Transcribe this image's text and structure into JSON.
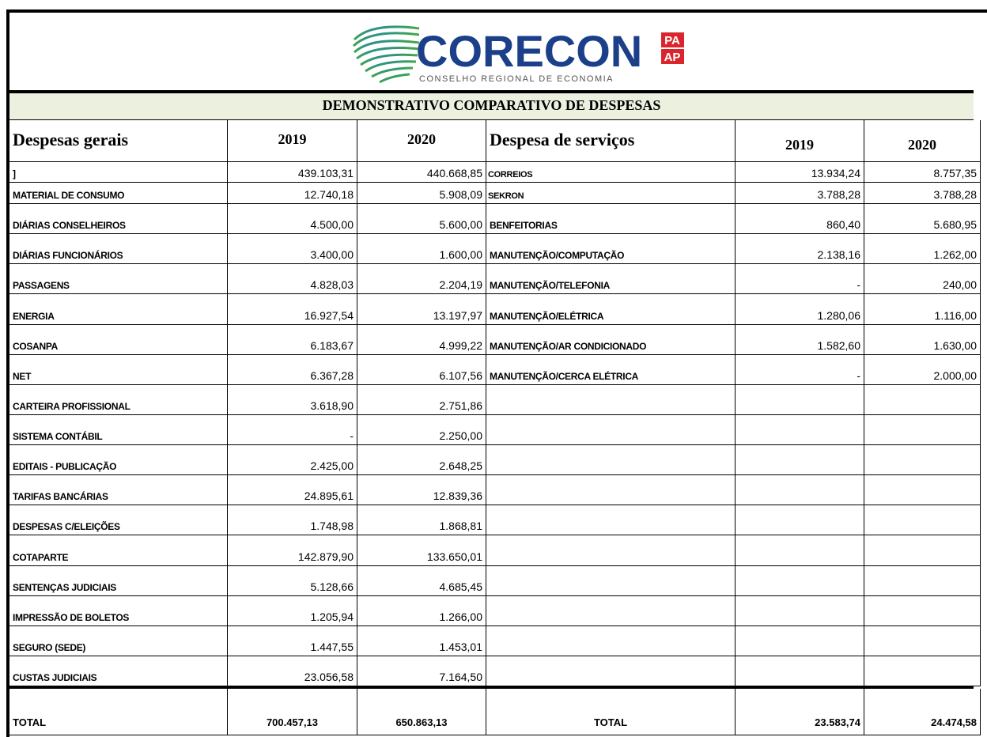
{
  "header": {
    "logo_text": "CORECON",
    "logo_badge_top": "PA",
    "logo_badge_bottom": "AP",
    "logo_subtitle": "CONSELHO REGIONAL DE ECONOMIA"
  },
  "table": {
    "title": "DEMONSTRATIVO COMPARATIVO DE DESPESAS",
    "left_headers": [
      "Despesas gerais",
      "2019",
      "2020"
    ],
    "right_headers": [
      "Despesa de serviços",
      "2019",
      "2020"
    ],
    "left_rows": [
      [
        "]",
        "439.103,31",
        "440.668,85"
      ],
      [
        "MATERIAL DE CONSUMO",
        "12.740,18",
        "5.908,09"
      ],
      [
        "DIÁRIAS CONSELHEIROS",
        "4.500,00",
        "5.600,00"
      ],
      [
        "DIÁRIAS FUNCIONÁRIOS",
        "3.400,00",
        "1.600,00"
      ],
      [
        "PASSAGENS",
        "4.828,03",
        "2.204,19"
      ],
      [
        "ENERGIA",
        "16.927,54",
        "13.197,97"
      ],
      [
        "COSANPA",
        "6.183,67",
        "4.999,22"
      ],
      [
        "NET",
        "6.367,28",
        "6.107,56"
      ],
      [
        "CARTEIRA PROFISSIONAL",
        "3.618,90",
        "2.751,86"
      ],
      [
        "SISTEMA CONTÁBIL",
        "-",
        "2.250,00"
      ],
      [
        "EDITAIS - PUBLICAÇÃO",
        "2.425,00",
        "2.648,25"
      ],
      [
        "TARIFAS BANCÁRIAS",
        "24.895,61",
        "12.839,36"
      ],
      [
        "DESPESAS C/ELEIÇÕES",
        "1.748,98",
        "1.868,81"
      ],
      [
        "COTAPARTE",
        "142.879,90",
        "133.650,01"
      ],
      [
        "SENTENÇAS JUDICIAIS",
        "5.128,66",
        "4.685,45"
      ],
      [
        "IMPRESSÃO DE BOLETOS",
        "1.205,94",
        "1.266,00"
      ],
      [
        "SEGURO (SEDE)",
        "1.447,55",
        "1.453,01"
      ],
      [
        "CUSTAS JUDICIAIS",
        "23.056,58",
        "7.164,50"
      ]
    ],
    "right_rows": [
      [
        "CORREIOS",
        "13.934,24",
        "8.757,35"
      ],
      [
        "SEKRON",
        "3.788,28",
        "3.788,28"
      ],
      [
        "BENFEITORIAS",
        "860,40",
        "5.680,95"
      ],
      [
        "MANUTENÇÃO/COMPUTAÇÃO",
        "2.138,16",
        "1.262,00"
      ],
      [
        "MANUTENÇÃO/TELEFONIA",
        "-",
        "240,00"
      ],
      [
        "MANUTENÇÃO/ELÉTRICA",
        "1.280,06",
        "1.116,00"
      ],
      [
        "MANUTENÇÃO/AR CONDICIONADO",
        "1.582,60",
        "1.630,00"
      ],
      [
        "MANUTENÇÃO/CERCA ELÉTRICA",
        "-",
        "2.000,00"
      ]
    ],
    "left_total": [
      "TOTAL",
      "700.457,13",
      "650.863,13"
    ],
    "right_total": [
      "TOTAL",
      "23.583,74",
      "24.474,58"
    ]
  }
}
